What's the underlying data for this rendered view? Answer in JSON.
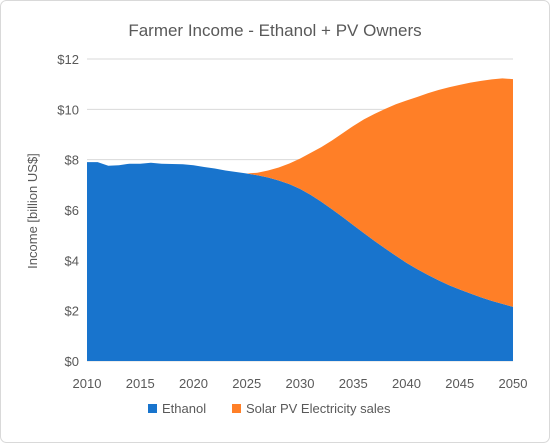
{
  "chart_data": {
    "type": "area",
    "stacked": true,
    "title": "Farmer Income - Ethanol + PV Owners",
    "xlabel": "",
    "ylabel": "Income [billion US$]",
    "xlim": [
      2010,
      2050
    ],
    "ylim": [
      0,
      12
    ],
    "x_ticks": [
      "2010",
      "2015",
      "2020",
      "2025",
      "2030",
      "2035",
      "2040",
      "2045",
      "2050"
    ],
    "y_ticks": [
      "$0",
      "$2",
      "$4",
      "$6",
      "$8",
      "$10",
      "$12"
    ],
    "grid": true,
    "legend_position": "bottom",
    "x": [
      2010,
      2011,
      2012,
      2013,
      2014,
      2015,
      2016,
      2017,
      2018,
      2019,
      2020,
      2021,
      2022,
      2023,
      2024,
      2025,
      2026,
      2027,
      2028,
      2029,
      2030,
      2031,
      2032,
      2033,
      2034,
      2035,
      2036,
      2037,
      2038,
      2039,
      2040,
      2041,
      2042,
      2043,
      2044,
      2045,
      2046,
      2047,
      2048,
      2049,
      2050
    ],
    "series": [
      {
        "name": "Ethanol",
        "color": "#1874cd",
        "values": [
          7.9,
          7.9,
          7.76,
          7.78,
          7.84,
          7.84,
          7.88,
          7.84,
          7.83,
          7.82,
          7.78,
          7.71,
          7.65,
          7.57,
          7.51,
          7.45,
          7.38,
          7.29,
          7.17,
          7.03,
          6.84,
          6.6,
          6.33,
          6.03,
          5.72,
          5.4,
          5.08,
          4.77,
          4.47,
          4.18,
          3.9,
          3.65,
          3.42,
          3.21,
          3.01,
          2.84,
          2.68,
          2.53,
          2.39,
          2.27,
          2.15
        ]
      },
      {
        "name": "Solar PV Electricity sales",
        "color": "#ff7f27",
        "values": [
          0,
          0,
          0,
          0,
          0,
          0,
          0,
          0,
          0,
          0,
          0,
          0,
          0,
          0,
          0,
          0,
          0.1,
          0.28,
          0.52,
          0.82,
          1.2,
          1.67,
          2.17,
          2.73,
          3.33,
          3.94,
          4.52,
          5.05,
          5.55,
          6.02,
          6.45,
          6.84,
          7.22,
          7.56,
          7.87,
          8.13,
          8.38,
          8.6,
          8.8,
          8.96,
          9.05
        ]
      }
    ]
  }
}
